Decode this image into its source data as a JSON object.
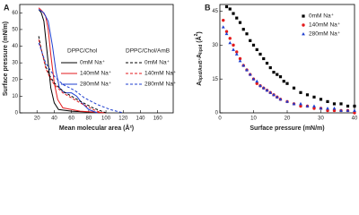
{
  "chart_data": [
    {
      "type": "line",
      "panel": "A",
      "x_label": "Mean molecular area (Å²)",
      "y_label": "Surface pressure (mN/m)",
      "xlim": [
        0,
        178
      ],
      "ylim": [
        0,
        65
      ],
      "xticks": [
        20,
        40,
        60,
        80,
        100,
        120,
        140,
        160
      ],
      "yticks": [
        0,
        10,
        20,
        30,
        40,
        50,
        60
      ],
      "legend_groups": [
        "DPPC/Chol",
        "DPPC/Chol/AmB"
      ],
      "series": [
        {
          "name": "0mM Na⁺",
          "color": "#000000",
          "dashed": false,
          "x": [
            22,
            25,
            28,
            30,
            33,
            36,
            40,
            45,
            60,
            80,
            100
          ],
          "values": [
            62,
            60,
            55,
            45,
            30,
            15,
            6,
            2,
            1,
            0.5,
            0
          ]
        },
        {
          "name": "140mM Na⁺",
          "color": "#e31a1c",
          "dashed": false,
          "x": [
            22,
            26,
            30,
            33,
            36,
            40,
            44,
            50,
            70,
            100
          ],
          "values": [
            63,
            61,
            58,
            50,
            35,
            18,
            8,
            3,
            1,
            0
          ]
        },
        {
          "name": "280mM Na⁺",
          "color": "#1f3fcf",
          "dashed": false,
          "x": [
            22,
            28,
            33,
            38,
            42,
            46,
            52,
            60,
            66,
            72,
            80,
            90
          ],
          "values": [
            62,
            60,
            55,
            40,
            25,
            15,
            12,
            12,
            10,
            6,
            2,
            0
          ]
        },
        {
          "name": "0mM Na⁺",
          "color": "#000000",
          "dashed": true,
          "x": [
            22,
            25,
            30,
            35,
            40,
            50,
            60,
            70,
            85,
            100
          ],
          "values": [
            46,
            38,
            28,
            22,
            18,
            13,
            10,
            7,
            3,
            0
          ]
        },
        {
          "name": "140mM Na⁺",
          "color": "#e31a1c",
          "dashed": true,
          "x": [
            22,
            26,
            30,
            35,
            40,
            50,
            60,
            70,
            85,
            95
          ],
          "values": [
            44,
            36,
            27,
            21,
            17,
            12,
            9,
            6,
            2,
            0
          ]
        },
        {
          "name": "280mM Na⁺",
          "color": "#1f3fcf",
          "dashed": true,
          "x": [
            22,
            30,
            40,
            50,
            58,
            65,
            75,
            90,
            105,
            120
          ],
          "values": [
            42,
            30,
            22,
            17,
            15,
            13,
            9,
            5,
            2,
            0
          ]
        }
      ]
    },
    {
      "type": "scatter",
      "panel": "B",
      "x_label": "Surface pressure (mN/m)",
      "y_label_parts": [
        "A",
        "lipid/AmB",
        "-A",
        "lipid",
        " (Å",
        "2",
        ")"
      ],
      "xlim": [
        0,
        40
      ],
      "ylim": [
        0,
        48
      ],
      "xticks": [
        0,
        10,
        20,
        30,
        40
      ],
      "yticks": [
        0,
        15,
        30,
        45
      ],
      "series": [
        {
          "name": "0mM Na⁺",
          "color": "#000000",
          "marker": "square",
          "x": [
            2,
            3,
            4,
            5,
            6,
            7,
            8,
            9,
            10,
            11,
            12,
            13,
            14,
            15,
            16,
            17,
            18,
            19,
            20,
            22,
            24,
            26,
            28,
            30,
            32,
            34,
            36,
            38,
            40
          ],
          "values": [
            47,
            46,
            44,
            42,
            40,
            37,
            35,
            32,
            30,
            28,
            26,
            24,
            22,
            20,
            18,
            17,
            16,
            14,
            13,
            11,
            9,
            8,
            7,
            6,
            5,
            4,
            4,
            3,
            3
          ]
        },
        {
          "name": "140mM Na⁺",
          "color": "#e31a1c",
          "marker": "circle",
          "x": [
            1,
            2,
            3,
            4,
            5,
            6,
            7,
            8,
            9,
            10,
            11,
            12,
            13,
            14,
            15,
            16,
            17,
            18,
            20,
            22,
            24,
            26,
            28,
            30,
            32,
            34,
            36,
            38,
            40
          ],
          "values": [
            41,
            36,
            33,
            30,
            27,
            24,
            21,
            19,
            17,
            15,
            13,
            12,
            11,
            10,
            9,
            8,
            7,
            6,
            5,
            4,
            3,
            3,
            2,
            2,
            1,
            1,
            1,
            1,
            0
          ]
        },
        {
          "name": "280mM Na⁺",
          "color": "#1f3fcf",
          "marker": "triangle",
          "x": [
            1,
            2,
            3,
            4,
            5,
            6,
            7,
            8,
            9,
            10,
            11,
            12,
            13,
            14,
            15,
            16,
            17,
            18,
            20,
            22,
            24,
            26,
            28,
            30,
            32,
            34,
            36,
            38,
            40
          ],
          "values": [
            38,
            35,
            31,
            28,
            26,
            23,
            21,
            19,
            17,
            15,
            14,
            12,
            11,
            10,
            9,
            8,
            7,
            6,
            5,
            4,
            4,
            3,
            3,
            2,
            2,
            2,
            1,
            1,
            1
          ]
        }
      ]
    }
  ]
}
